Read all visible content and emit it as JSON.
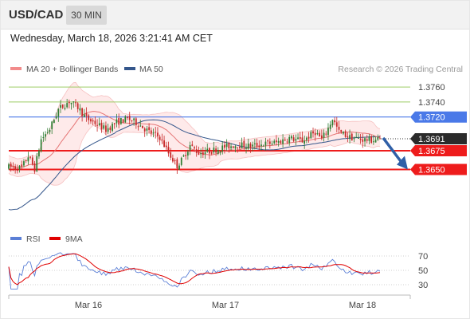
{
  "header": {
    "symbol": "USD/CAD",
    "timeframe": "30 MIN"
  },
  "datetime": "Wednesday, March 18, 2026 3:21:41 AM CET",
  "legend": {
    "ma20": "MA 20 + Bollinger Bands",
    "ma50": "MA 50",
    "source": "Research © 2026 Trading Central"
  },
  "rsi_legend": {
    "rsi": "RSI",
    "ma9": "9MA"
  },
  "colors": {
    "bull": "#2e7d32",
    "bear": "#c62828",
    "ma20": "#e57373",
    "band_fill": "#fde3e3",
    "ma50": "#34568b",
    "resistance_green": "#9ccc65",
    "blue_level": "#4a79e8",
    "support_red": "#ee1c1c",
    "current_label": "#2b2b2b",
    "rsi": "#5b7fd6",
    "rsi_ma": "#e00000",
    "arrow": "#2f5fa7"
  },
  "chart_data": [
    {
      "type": "candlestick",
      "title": "USD/CAD",
      "timeframe": "30 MIN",
      "x_tick_labels": [
        "Mar 16",
        "Mar 17",
        "Mar 18"
      ],
      "ylim": [
        1.3575,
        1.3775
      ],
      "levels": [
        {
          "value": 1.376,
          "label": "1.3760",
          "role": "resistance"
        },
        {
          "value": 1.374,
          "label": "1.3740",
          "role": "resistance"
        },
        {
          "value": 1.372,
          "label": "1.3720",
          "role": "pivot"
        },
        {
          "value": 1.3691,
          "label": "1.3691",
          "role": "last"
        },
        {
          "value": 1.3675,
          "label": "1.3675",
          "role": "support"
        },
        {
          "value": 1.365,
          "label": "1.3650",
          "role": "support"
        }
      ],
      "last_price": 1.3691,
      "projection": {
        "from": 1.3691,
        "to": 1.365,
        "direction": "down"
      },
      "series": [
        {
          "name": "MA 20 + Bollinger Bands"
        },
        {
          "name": "MA 50"
        }
      ]
    },
    {
      "type": "line",
      "title": "RSI",
      "ylim": [
        20,
        80
      ],
      "y_ticks": [
        70,
        50,
        30
      ],
      "series": [
        {
          "name": "RSI"
        },
        {
          "name": "9MA"
        }
      ]
    }
  ]
}
